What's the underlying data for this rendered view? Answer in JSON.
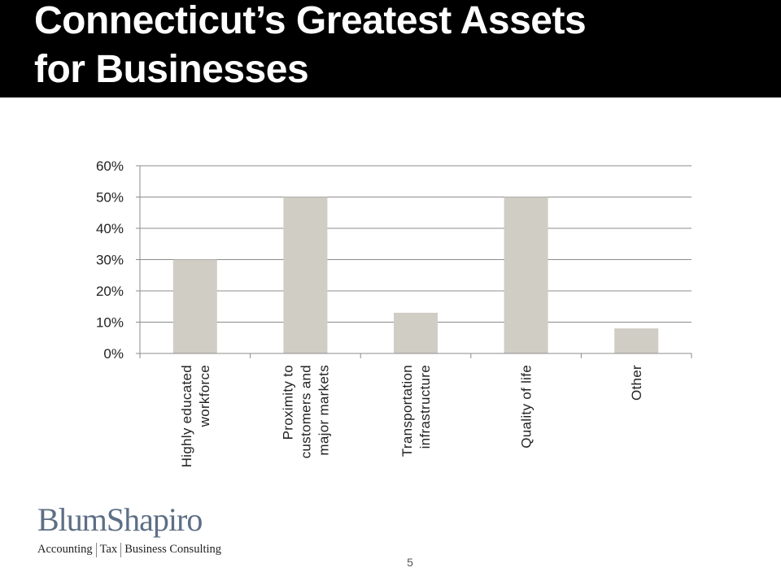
{
  "slide": {
    "title_lines": [
      "Connecticut’s Greatest Assets",
      "for Businesses"
    ],
    "page_number": "5"
  },
  "logo": {
    "name": "BlumShapiro",
    "tagline": [
      "Accounting",
      "Tax",
      "Business Consulting"
    ]
  },
  "colors": {
    "title_bar": "#000000",
    "bar_fill": "#d0cdc5",
    "gridline": "#8c8c8c",
    "logo_blue": "#5d6f86"
  },
  "chart_data": {
    "type": "bar",
    "categories": [
      [
        "Highly educated",
        "workforce"
      ],
      [
        "Proximity to",
        "customers and",
        "major markets"
      ],
      [
        "Transportation",
        "infrastructure"
      ],
      [
        "Quality of life"
      ],
      [
        "Other"
      ]
    ],
    "series": [
      {
        "values": [
          30,
          50,
          13,
          50,
          8
        ]
      }
    ],
    "yticks": [
      "0%",
      "10%",
      "20%",
      "30%",
      "40%",
      "50%",
      "60%"
    ],
    "ylim": [
      0,
      60
    ],
    "y_unit": "percent",
    "grid": true,
    "legend": "none"
  }
}
